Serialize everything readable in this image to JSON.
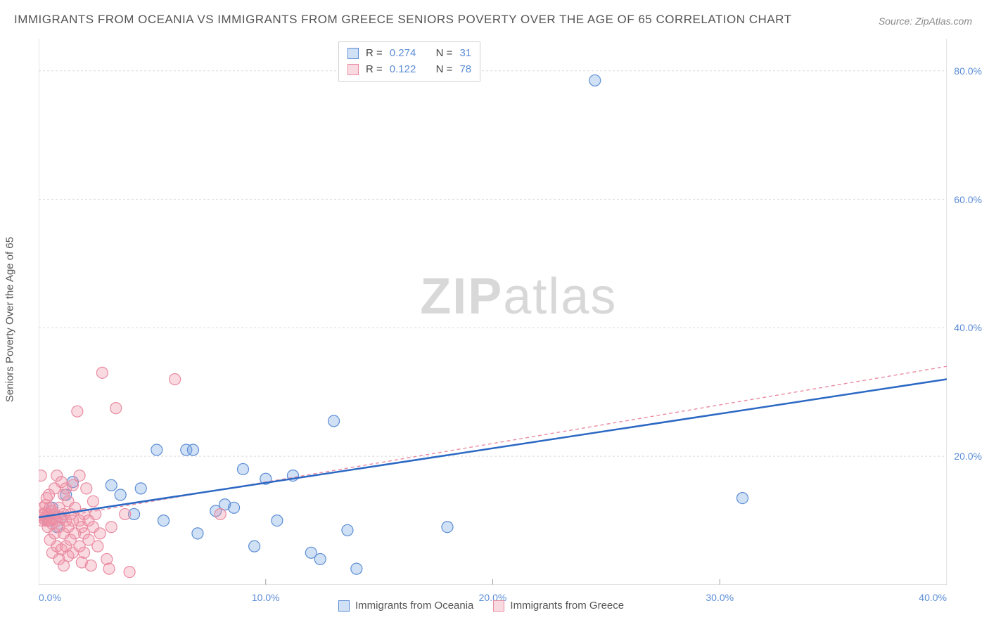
{
  "title": "IMMIGRANTS FROM OCEANIA VS IMMIGRANTS FROM GREECE SENIORS POVERTY OVER THE AGE OF 65 CORRELATION CHART",
  "source": "Source: ZipAtlas.com",
  "y_axis_label": "Seniors Poverty Over the Age of 65",
  "watermark": {
    "bold": "ZIP",
    "light": "atlas"
  },
  "chart": {
    "type": "scatter",
    "plot_bg": "#ffffff",
    "grid_color": "#d9d9d9",
    "axis_color": "#c9c9c9",
    "tick_color": "#9aa0a6",
    "label_color": "#5b8dd6",
    "xlim": [
      0,
      40
    ],
    "ylim": [
      0,
      85
    ],
    "x_ticks": [
      0,
      10,
      20,
      30,
      40
    ],
    "y_ticks": [
      20,
      40,
      60,
      80
    ],
    "x_tick_labels": [
      "0.0%",
      "10.0%",
      "20.0%",
      "30.0%",
      "40.0%"
    ],
    "y_tick_labels": [
      "20.0%",
      "40.0%",
      "60.0%",
      "80.0%"
    ],
    "marker_radius": 8,
    "marker_stroke_width": 1.2,
    "series": [
      {
        "name": "Immigrants from Oceania",
        "fill": "rgba(120,165,225,0.35)",
        "stroke": "#5b8dd6",
        "r_label": "R =",
        "r_value": "0.274",
        "n_label": "N =",
        "n_value": "31",
        "trend": {
          "x1": 0,
          "y1": 10.5,
          "x2": 40,
          "y2": 32,
          "color": "#2b68c4",
          "width": 2.5,
          "dash": ""
        },
        "points": [
          [
            0.4,
            10.0
          ],
          [
            0.6,
            12.0
          ],
          [
            0.8,
            9.0
          ],
          [
            1.0,
            10.5
          ],
          [
            1.2,
            14.0
          ],
          [
            1.5,
            16.0
          ],
          [
            3.2,
            15.5
          ],
          [
            3.6,
            14.0
          ],
          [
            4.2,
            11.0
          ],
          [
            4.5,
            15.0
          ],
          [
            5.2,
            21.0
          ],
          [
            5.5,
            10.0
          ],
          [
            6.5,
            21.0
          ],
          [
            6.8,
            21.0
          ],
          [
            7.0,
            8.0
          ],
          [
            7.8,
            11.5
          ],
          [
            8.2,
            12.5
          ],
          [
            8.6,
            12.0
          ],
          [
            9.0,
            18.0
          ],
          [
            9.5,
            6.0
          ],
          [
            10.0,
            16.5
          ],
          [
            10.5,
            10.0
          ],
          [
            11.2,
            17.0
          ],
          [
            12.0,
            5.0
          ],
          [
            12.4,
            4.0
          ],
          [
            13.0,
            25.5
          ],
          [
            13.6,
            8.5
          ],
          [
            14.0,
            2.5
          ],
          [
            18.0,
            9.0
          ],
          [
            24.5,
            78.5
          ],
          [
            31.0,
            13.5
          ]
        ]
      },
      {
        "name": "Immigrants from Greece",
        "fill": "rgba(240,150,170,0.35)",
        "stroke": "#e98ba1",
        "r_label": "R =",
        "r_value": "0.122",
        "n_label": "N =",
        "n_value": "78",
        "trend": {
          "x1": 0,
          "y1": 10.0,
          "x2": 40,
          "y2": 34,
          "color": "#e98ba1",
          "width": 1.4,
          "dash": "5,4"
        },
        "points": [
          [
            0.1,
            17.0
          ],
          [
            0.15,
            10.0
          ],
          [
            0.2,
            11.0
          ],
          [
            0.2,
            12.0
          ],
          [
            0.25,
            10.2
          ],
          [
            0.3,
            10.0
          ],
          [
            0.3,
            11.2
          ],
          [
            0.3,
            12.4
          ],
          [
            0.35,
            10.5
          ],
          [
            0.35,
            13.5
          ],
          [
            0.4,
            9.0
          ],
          [
            0.4,
            11.0
          ],
          [
            0.45,
            10.0
          ],
          [
            0.45,
            14.0
          ],
          [
            0.5,
            7.0
          ],
          [
            0.5,
            10.0
          ],
          [
            0.5,
            12.0
          ],
          [
            0.55,
            10.5
          ],
          [
            0.6,
            5.0
          ],
          [
            0.6,
            9.5
          ],
          [
            0.6,
            11.5
          ],
          [
            0.65,
            10.2
          ],
          [
            0.7,
            8.0
          ],
          [
            0.7,
            11.0
          ],
          [
            0.7,
            15.0
          ],
          [
            0.8,
            6.0
          ],
          [
            0.8,
            10.0
          ],
          [
            0.8,
            17.0
          ],
          [
            0.9,
            4.0
          ],
          [
            0.9,
            9.0
          ],
          [
            0.9,
            12.0
          ],
          [
            1.0,
            5.5
          ],
          [
            1.0,
            10.5
          ],
          [
            1.0,
            16.0
          ],
          [
            1.1,
            3.0
          ],
          [
            1.1,
            8.0
          ],
          [
            1.1,
            11.0
          ],
          [
            1.1,
            14.0
          ],
          [
            1.2,
            6.0
          ],
          [
            1.2,
            10.0
          ],
          [
            1.2,
            15.0
          ],
          [
            1.3,
            4.5
          ],
          [
            1.3,
            9.0
          ],
          [
            1.3,
            13.0
          ],
          [
            1.4,
            7.0
          ],
          [
            1.4,
            11.0
          ],
          [
            1.5,
            5.0
          ],
          [
            1.5,
            10.0
          ],
          [
            1.5,
            15.5
          ],
          [
            1.6,
            8.0
          ],
          [
            1.6,
            12.0
          ],
          [
            1.7,
            27.0
          ],
          [
            1.8,
            6.0
          ],
          [
            1.8,
            10.0
          ],
          [
            1.8,
            17.0
          ],
          [
            1.9,
            3.5
          ],
          [
            1.9,
            9.0
          ],
          [
            2.0,
            5.0
          ],
          [
            2.0,
            8.0
          ],
          [
            2.0,
            11.0
          ],
          [
            2.1,
            15.0
          ],
          [
            2.2,
            7.0
          ],
          [
            2.2,
            10.0
          ],
          [
            2.3,
            3.0
          ],
          [
            2.4,
            9.0
          ],
          [
            2.4,
            13.0
          ],
          [
            2.5,
            11.0
          ],
          [
            2.6,
            6.0
          ],
          [
            2.7,
            8.0
          ],
          [
            2.8,
            33.0
          ],
          [
            3.0,
            4.0
          ],
          [
            3.1,
            2.5
          ],
          [
            3.2,
            9.0
          ],
          [
            3.4,
            27.5
          ],
          [
            3.8,
            11.0
          ],
          [
            4.0,
            2.0
          ],
          [
            6.0,
            32.0
          ],
          [
            8.0,
            11.0
          ]
        ]
      }
    ]
  },
  "legend_bottom": [
    {
      "label": "Immigrants from Oceania",
      "fill": "rgba(120,165,225,0.35)",
      "stroke": "#5b8dd6"
    },
    {
      "label": "Immigrants from Greece",
      "fill": "rgba(240,150,170,0.35)",
      "stroke": "#e98ba1"
    }
  ]
}
